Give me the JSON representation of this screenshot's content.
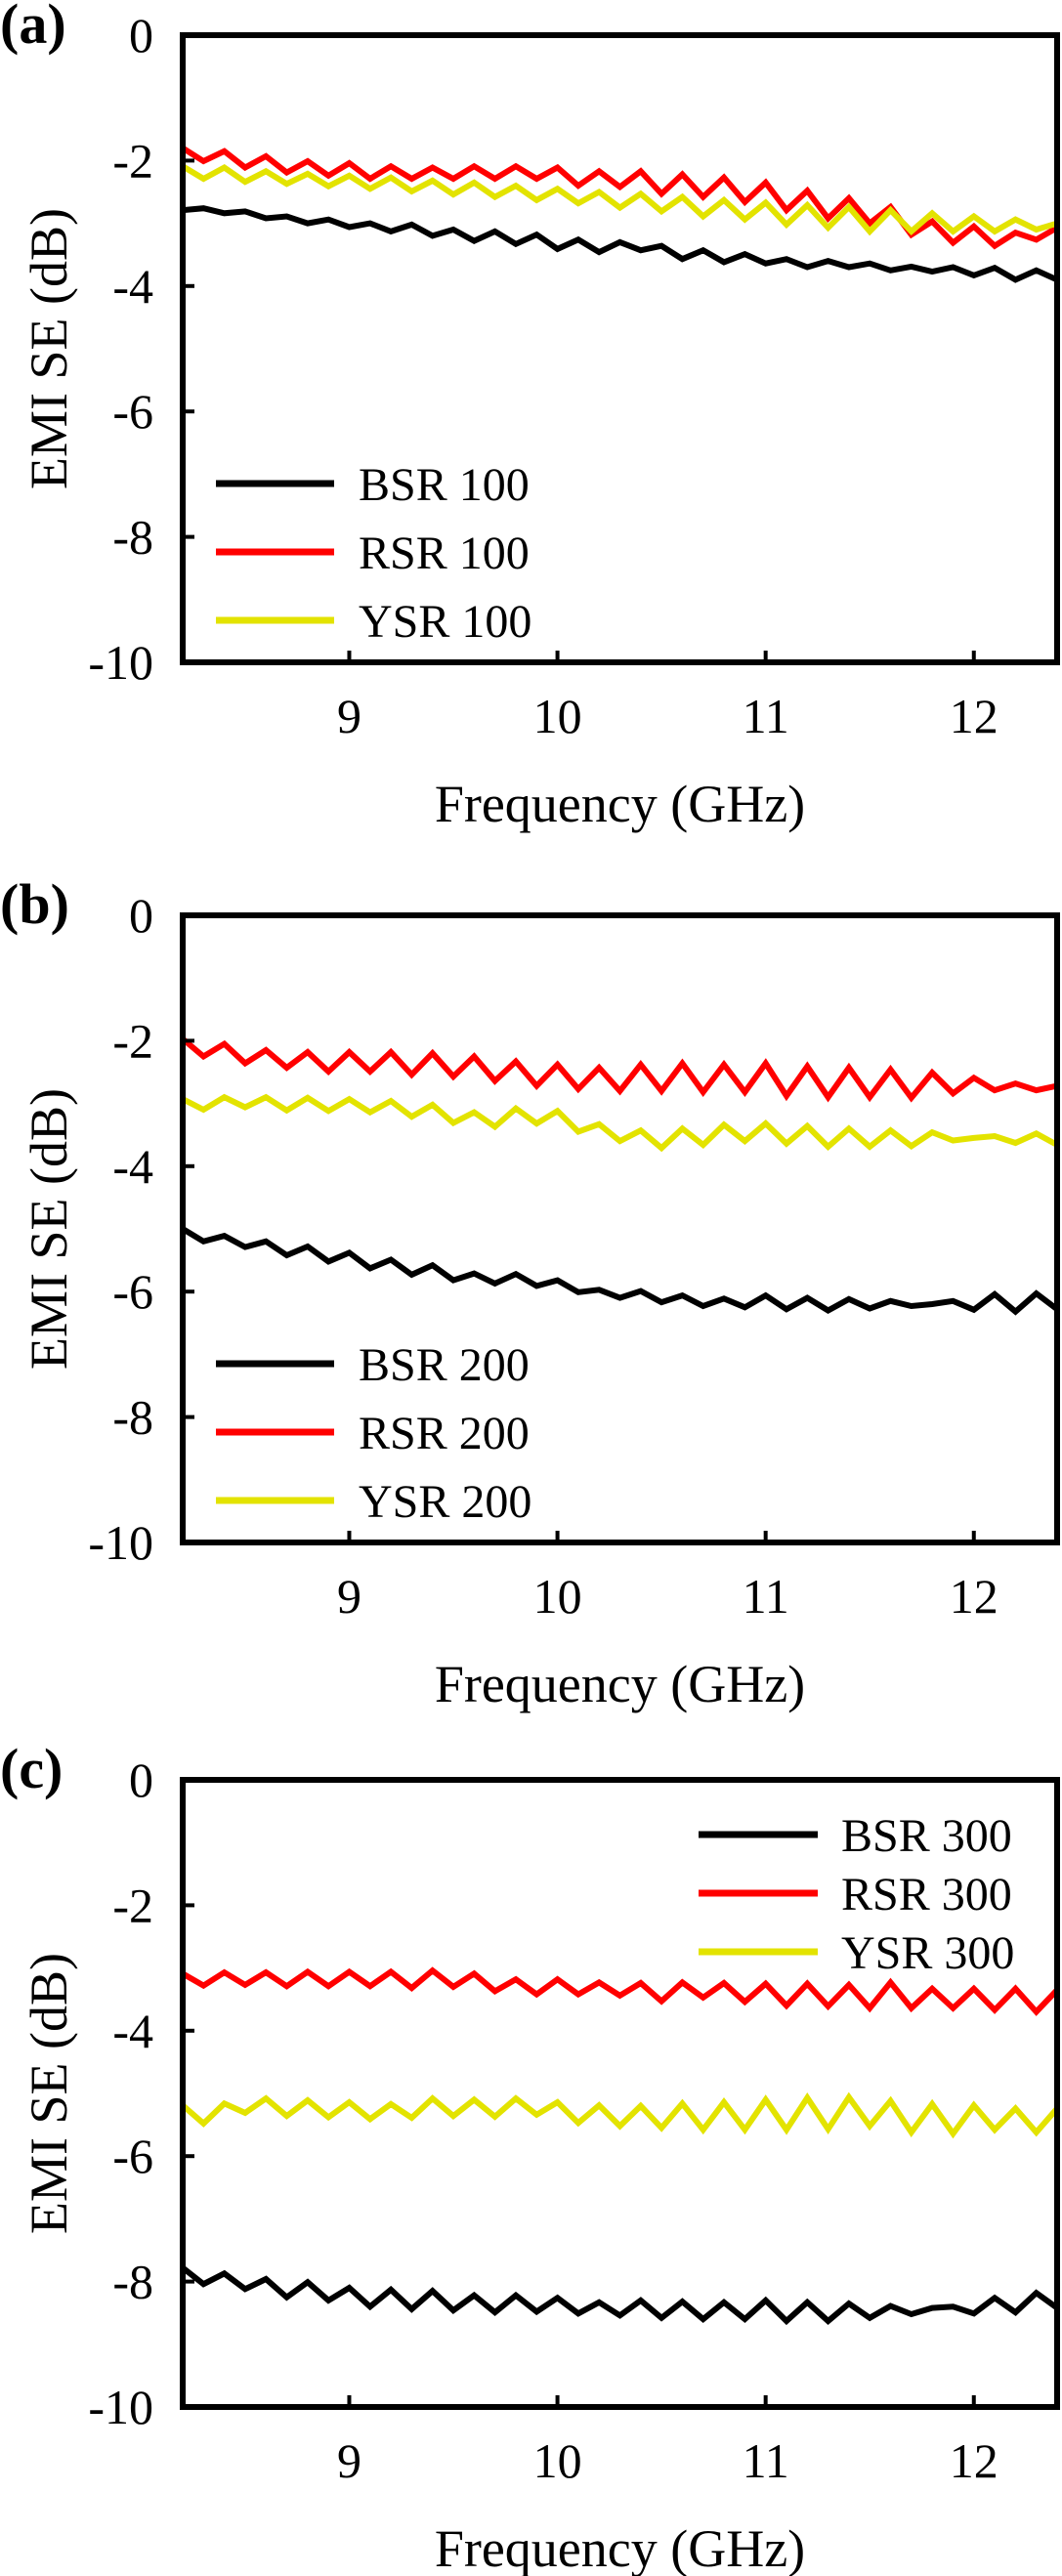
{
  "figure": {
    "panels": [
      {
        "label": "(a)",
        "legend_position": "bottom-left"
      },
      {
        "label": "(b)",
        "legend_position": "bottom-left"
      },
      {
        "label": "(c)",
        "legend_position": "top-right"
      }
    ]
  },
  "chart_data": [
    {
      "type": "line",
      "panel": "(a)",
      "title": "",
      "xlabel": "Frequency (GHz)",
      "ylabel": "EMI SE (dB)",
      "xlim": [
        8.2,
        12.4
      ],
      "ylim": [
        -10,
        0
      ],
      "xticks": [
        9,
        10,
        11,
        12
      ],
      "xtick_labels": [
        "9",
        "10",
        "11",
        "12"
      ],
      "yticks": [
        0,
        -2,
        -4,
        -6,
        -8,
        -10
      ],
      "ytick_labels": [
        "0",
        "-2",
        "-4",
        "-6",
        "-8",
        "-10"
      ],
      "grid": false,
      "legend": "bottom-left",
      "x": [
        8.2,
        8.3,
        8.4,
        8.5,
        8.6,
        8.7,
        8.8,
        8.9,
        9.0,
        9.1,
        9.2,
        9.3,
        9.4,
        9.5,
        9.6,
        9.7,
        9.8,
        9.9,
        10.0,
        10.1,
        10.2,
        10.3,
        10.4,
        10.5,
        10.6,
        10.7,
        10.8,
        10.9,
        11.0,
        11.1,
        11.2,
        11.3,
        11.4,
        11.5,
        11.6,
        11.7,
        11.8,
        11.9,
        12.0,
        12.1,
        12.2,
        12.3,
        12.4
      ],
      "series": [
        {
          "name": "BSR 100",
          "color": "#000000",
          "values": [
            -2.79,
            -2.76,
            -2.84,
            -2.81,
            -2.92,
            -2.89,
            -3.0,
            -2.94,
            -3.06,
            -3.0,
            -3.13,
            -3.02,
            -3.2,
            -3.1,
            -3.28,
            -3.13,
            -3.33,
            -3.18,
            -3.41,
            -3.26,
            -3.46,
            -3.3,
            -3.43,
            -3.36,
            -3.57,
            -3.43,
            -3.62,
            -3.49,
            -3.64,
            -3.57,
            -3.7,
            -3.6,
            -3.7,
            -3.64,
            -3.75,
            -3.69,
            -3.77,
            -3.7,
            -3.83,
            -3.71,
            -3.9,
            -3.75,
            -3.9
          ]
        },
        {
          "name": "RSR 100",
          "color": "#ff0000",
          "values": [
            -1.8,
            -2.01,
            -1.85,
            -2.11,
            -1.93,
            -2.19,
            -2.01,
            -2.24,
            -2.04,
            -2.29,
            -2.09,
            -2.29,
            -2.11,
            -2.29,
            -2.09,
            -2.29,
            -2.09,
            -2.29,
            -2.11,
            -2.4,
            -2.17,
            -2.42,
            -2.17,
            -2.53,
            -2.22,
            -2.58,
            -2.27,
            -2.66,
            -2.35,
            -2.79,
            -2.48,
            -2.92,
            -2.6,
            -3.0,
            -2.74,
            -3.18,
            -2.97,
            -3.31,
            -3.05,
            -3.36,
            -3.15,
            -3.26,
            -3.07
          ]
        },
        {
          "name": "YSR 100",
          "color": "#e3e300",
          "values": [
            -2.09,
            -2.29,
            -2.11,
            -2.34,
            -2.17,
            -2.37,
            -2.21,
            -2.41,
            -2.24,
            -2.45,
            -2.27,
            -2.49,
            -2.32,
            -2.54,
            -2.35,
            -2.58,
            -2.4,
            -2.63,
            -2.45,
            -2.68,
            -2.5,
            -2.75,
            -2.53,
            -2.81,
            -2.58,
            -2.89,
            -2.63,
            -2.94,
            -2.67,
            -3.02,
            -2.71,
            -3.07,
            -2.74,
            -3.13,
            -2.79,
            -3.13,
            -2.84,
            -3.13,
            -2.89,
            -3.13,
            -2.94,
            -3.1,
            -3.0
          ]
        }
      ]
    },
    {
      "type": "line",
      "panel": "(b)",
      "title": "",
      "xlabel": "Frequency (GHz)",
      "ylabel": "EMI SE (dB)",
      "xlim": [
        8.2,
        12.4
      ],
      "ylim": [
        -10,
        0
      ],
      "xticks": [
        9,
        10,
        11,
        12
      ],
      "xtick_labels": [
        "9",
        "10",
        "11",
        "12"
      ],
      "yticks": [
        0,
        -2,
        -4,
        -6,
        -8,
        -10
      ],
      "ytick_labels": [
        "0",
        "-2",
        "-4",
        "-6",
        "-8",
        "-10"
      ],
      "grid": false,
      "legend": "bottom-left",
      "x": [
        8.2,
        8.3,
        8.4,
        8.5,
        8.6,
        8.7,
        8.8,
        8.9,
        9.0,
        9.1,
        9.2,
        9.3,
        9.4,
        9.5,
        9.6,
        9.7,
        9.8,
        9.9,
        10.0,
        10.1,
        10.2,
        10.3,
        10.4,
        10.5,
        10.6,
        10.7,
        10.8,
        10.9,
        11.0,
        11.1,
        11.2,
        11.3,
        11.4,
        11.5,
        11.6,
        11.7,
        11.8,
        11.9,
        12.0,
        12.1,
        12.2,
        12.3,
        12.4
      ],
      "series": [
        {
          "name": "BSR 200",
          "color": "#000000",
          "values": [
            -5.0,
            -5.2,
            -5.11,
            -5.29,
            -5.2,
            -5.42,
            -5.28,
            -5.52,
            -5.38,
            -5.63,
            -5.49,
            -5.73,
            -5.58,
            -5.82,
            -5.71,
            -5.87,
            -5.72,
            -5.91,
            -5.82,
            -6.01,
            -5.97,
            -6.1,
            -5.99,
            -6.17,
            -6.06,
            -6.23,
            -6.11,
            -6.25,
            -6.06,
            -6.28,
            -6.1,
            -6.3,
            -6.12,
            -6.27,
            -6.15,
            -6.23,
            -6.2,
            -6.15,
            -6.29,
            -6.04,
            -6.32,
            -6.03,
            -6.28
          ]
        },
        {
          "name": "RSR 200",
          "color": "#ff0000",
          "values": [
            -1.97,
            -2.25,
            -2.05,
            -2.36,
            -2.15,
            -2.43,
            -2.18,
            -2.49,
            -2.18,
            -2.49,
            -2.18,
            -2.54,
            -2.2,
            -2.57,
            -2.25,
            -2.64,
            -2.33,
            -2.72,
            -2.38,
            -2.77,
            -2.43,
            -2.8,
            -2.38,
            -2.8,
            -2.36,
            -2.82,
            -2.38,
            -2.82,
            -2.36,
            -2.88,
            -2.41,
            -2.9,
            -2.43,
            -2.9,
            -2.46,
            -2.91,
            -2.51,
            -2.84,
            -2.59,
            -2.79,
            -2.68,
            -2.79,
            -2.72
          ]
        },
        {
          "name": "YSR 200",
          "color": "#e3e300",
          "values": [
            -2.93,
            -3.1,
            -2.9,
            -3.06,
            -2.9,
            -3.11,
            -2.91,
            -3.12,
            -2.93,
            -3.14,
            -2.96,
            -3.21,
            -3.02,
            -3.31,
            -3.14,
            -3.37,
            -3.08,
            -3.32,
            -3.12,
            -3.45,
            -3.33,
            -3.6,
            -3.43,
            -3.71,
            -3.4,
            -3.66,
            -3.34,
            -3.6,
            -3.32,
            -3.64,
            -3.36,
            -3.69,
            -3.4,
            -3.69,
            -3.43,
            -3.68,
            -3.46,
            -3.59,
            -3.55,
            -3.52,
            -3.63,
            -3.48,
            -3.66
          ]
        }
      ]
    },
    {
      "type": "line",
      "panel": "(c)",
      "title": "",
      "xlabel": "Frequency (GHz)",
      "ylabel": "EMI SE (dB)",
      "xlim": [
        8.2,
        12.4
      ],
      "ylim": [
        -10,
        0
      ],
      "xticks": [
        9,
        10,
        11,
        12
      ],
      "xtick_labels": [
        "9",
        "10",
        "11",
        "12"
      ],
      "yticks": [
        0,
        -2,
        -4,
        -6,
        -8,
        -10
      ],
      "ytick_labels": [
        "0",
        "-2",
        "-4",
        "-6",
        "-8",
        "-10"
      ],
      "grid": false,
      "legend": "top-right",
      "x": [
        8.2,
        8.3,
        8.4,
        8.5,
        8.6,
        8.7,
        8.8,
        8.9,
        9.0,
        9.1,
        9.2,
        9.3,
        9.4,
        9.5,
        9.6,
        9.7,
        9.8,
        9.9,
        10.0,
        10.1,
        10.2,
        10.3,
        10.4,
        10.5,
        10.6,
        10.7,
        10.8,
        10.9,
        11.0,
        11.1,
        11.2,
        11.3,
        11.4,
        11.5,
        11.6,
        11.7,
        11.8,
        11.9,
        12.0,
        12.1,
        12.2,
        12.3,
        12.4
      ],
      "series": [
        {
          "name": "BSR 300",
          "color": "#000000",
          "values": [
            -7.78,
            -8.04,
            -7.87,
            -8.12,
            -7.96,
            -8.25,
            -8.01,
            -8.3,
            -8.1,
            -8.4,
            -8.13,
            -8.44,
            -8.15,
            -8.46,
            -8.22,
            -8.49,
            -8.22,
            -8.48,
            -8.26,
            -8.51,
            -8.33,
            -8.54,
            -8.3,
            -8.58,
            -8.32,
            -8.6,
            -8.33,
            -8.6,
            -8.3,
            -8.63,
            -8.33,
            -8.63,
            -8.35,
            -8.58,
            -8.39,
            -8.52,
            -8.42,
            -8.4,
            -8.51,
            -8.26,
            -8.49,
            -8.18,
            -8.42
          ]
        },
        {
          "name": "RSR 300",
          "color": "#ff0000",
          "values": [
            -3.09,
            -3.28,
            -3.07,
            -3.27,
            -3.07,
            -3.29,
            -3.06,
            -3.29,
            -3.06,
            -3.29,
            -3.06,
            -3.32,
            -3.04,
            -3.3,
            -3.09,
            -3.37,
            -3.18,
            -3.42,
            -3.18,
            -3.42,
            -3.23,
            -3.44,
            -3.24,
            -3.53,
            -3.23,
            -3.47,
            -3.24,
            -3.54,
            -3.25,
            -3.6,
            -3.25,
            -3.61,
            -3.27,
            -3.64,
            -3.23,
            -3.64,
            -3.33,
            -3.64,
            -3.33,
            -3.67,
            -3.33,
            -3.7,
            -3.35
          ]
        },
        {
          "name": "YSR 300",
          "color": "#e3e300",
          "values": [
            -5.19,
            -5.48,
            -5.16,
            -5.31,
            -5.08,
            -5.36,
            -5.11,
            -5.38,
            -5.14,
            -5.41,
            -5.17,
            -5.39,
            -5.08,
            -5.36,
            -5.1,
            -5.37,
            -5.08,
            -5.34,
            -5.14,
            -5.47,
            -5.19,
            -5.52,
            -5.2,
            -5.55,
            -5.16,
            -5.58,
            -5.14,
            -5.58,
            -5.1,
            -5.58,
            -5.07,
            -5.57,
            -5.06,
            -5.52,
            -5.12,
            -5.62,
            -5.17,
            -5.64,
            -5.19,
            -5.58,
            -5.24,
            -5.62,
            -5.24
          ]
        }
      ]
    }
  ]
}
